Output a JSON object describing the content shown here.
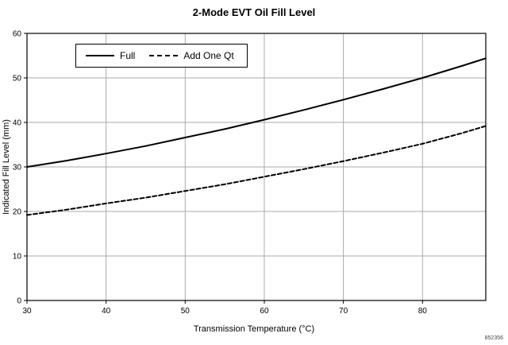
{
  "figure_code": "852356",
  "chart_data": {
    "type": "line",
    "title": "2-Mode EVT Oil Fill Level",
    "xlabel": "Transmission Temperature (°C)",
    "ylabel": "Indicated Fill Level (mm)",
    "xlim": [
      30,
      88
    ],
    "ylim": [
      0,
      60
    ],
    "x_ticks": [
      30,
      40,
      50,
      60,
      70,
      80
    ],
    "y_ticks": [
      0,
      10,
      20,
      30,
      40,
      50,
      60
    ],
    "grid": true,
    "legend_position": "top-left-inside",
    "x": [
      30,
      35,
      40,
      45,
      50,
      55,
      60,
      65,
      70,
      75,
      80,
      85,
      88
    ],
    "series": [
      {
        "name": "Full",
        "style": "solid",
        "color": "#000000",
        "values": [
          30.0,
          31.4,
          33.0,
          34.7,
          36.6,
          38.5,
          40.6,
          42.8,
          45.1,
          47.5,
          50.0,
          52.7,
          54.4
        ]
      },
      {
        "name": "Add One Qt",
        "style": "dashed",
        "color": "#000000",
        "values": [
          19.2,
          20.4,
          21.8,
          23.1,
          24.6,
          26.1,
          27.8,
          29.5,
          31.3,
          33.2,
          35.2,
          37.6,
          39.2
        ]
      }
    ]
  }
}
